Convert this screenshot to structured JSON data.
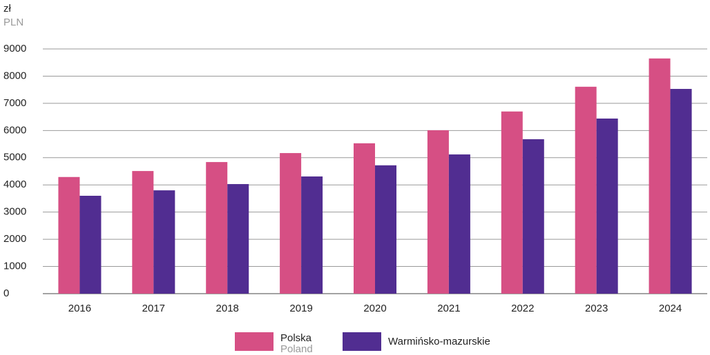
{
  "chart_data": {
    "type": "bar",
    "y_unit": "zł",
    "y_unit_en": "PLN",
    "categories": [
      "2016",
      "2017",
      "2018",
      "2019",
      "2020",
      "2021",
      "2022",
      "2023",
      "2024"
    ],
    "series": [
      {
        "name": "Polska",
        "subtitle": "Poland",
        "color": "#d64f84",
        "values": [
          4290,
          4510,
          4840,
          5170,
          5530,
          6010,
          6700,
          7610,
          8650
        ]
      },
      {
        "name": "Warmińsko-mazurskie",
        "color": "#512d91",
        "values": [
          3600,
          3800,
          4030,
          4310,
          4720,
          5120,
          5680,
          6440,
          7530
        ]
      }
    ],
    "ylim": [
      0,
      9000
    ],
    "yticks": [
      0,
      1000,
      2000,
      3000,
      4000,
      5000,
      6000,
      7000,
      8000,
      9000
    ],
    "grid": true
  }
}
